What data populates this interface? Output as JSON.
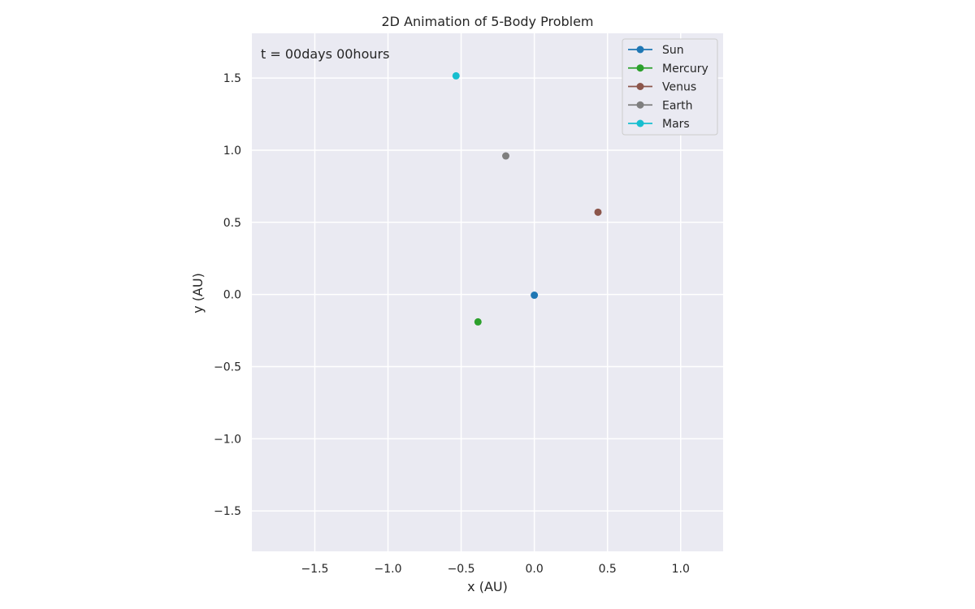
{
  "chart_data": {
    "type": "scatter",
    "title": "2D Animation of 5-Body Problem",
    "xlabel": "x (AU)",
    "ylabel": "y (AU)",
    "xlim": [
      -1.93,
      1.29
    ],
    "ylim": [
      -1.78,
      1.81
    ],
    "x_ticks": [
      -1.5,
      -1.0,
      -0.5,
      0.0,
      0.5,
      1.0
    ],
    "x_tick_labels": [
      "−1.5",
      "−1.0",
      "−0.5",
      "0.0",
      "0.5",
      "1.0"
    ],
    "y_ticks": [
      -1.5,
      -1.0,
      -0.5,
      0.0,
      0.5,
      1.0,
      1.5
    ],
    "y_tick_labels": [
      "−1.5",
      "−1.0",
      "−0.5",
      "0.0",
      "0.5",
      "1.0",
      "1.5"
    ],
    "grid": true,
    "legend_position": "top-right",
    "annotation": "t = 00days 00hours",
    "series": [
      {
        "name": "Sun",
        "color": "#1f77b4",
        "x": 0.0,
        "y": -0.005
      },
      {
        "name": "Mercury",
        "color": "#2ca02c",
        "x": -0.385,
        "y": -0.19
      },
      {
        "name": "Venus",
        "color": "#8c564b",
        "x": 0.435,
        "y": 0.57
      },
      {
        "name": "Earth",
        "color": "#7f7f7f",
        "x": -0.195,
        "y": 0.96
      },
      {
        "name": "Mars",
        "color": "#17becf",
        "x": -0.535,
        "y": 1.515
      }
    ]
  }
}
